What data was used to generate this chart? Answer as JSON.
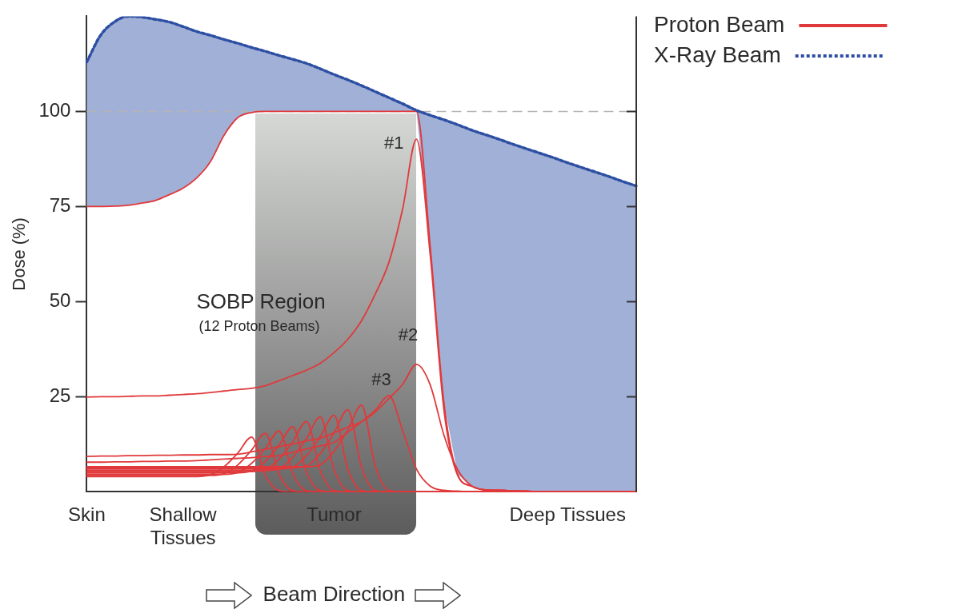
{
  "chart_data": {
    "type": "line",
    "ylabel": "Dose (%)",
    "xlabel": "Beam Direction",
    "categories": [
      "Skin",
      null,
      null,
      null,
      null,
      null,
      null,
      "Shallow Tissues",
      null,
      null,
      null,
      null,
      null,
      null,
      null,
      null,
      null,
      null,
      "Tumor",
      null,
      null,
      null,
      null,
      null,
      null,
      null,
      null,
      null,
      null,
      null,
      null,
      null,
      null,
      null,
      null,
      "Deep Tissues",
      null,
      null,
      null,
      null,
      null
    ],
    "ylim": [
      0,
      125
    ],
    "yticks": [
      25,
      50,
      75,
      100
    ],
    "legend": "top right",
    "ref_lines": [
      {
        "axis": "y",
        "value": 100,
        "color": "#b4b4b4",
        "line_style": "dashed"
      }
    ],
    "annotations": [
      "SOBP Region",
      "(12 Proton Beams)",
      "#1",
      "#2",
      "#3"
    ],
    "series": [
      {
        "name": "Proton Beam",
        "color": "#e0393b",
        "line_style": "solid",
        "values": [
          75,
          75,
          75.1,
          75.3,
          75.9,
          76.6,
          78.1,
          79.8,
          82.5,
          86.8,
          93.8,
          98.4,
          99.7,
          100,
          100,
          100,
          100,
          100,
          100,
          100,
          100,
          100,
          100,
          100,
          100,
          64.5,
          23.4,
          4.6,
          1.5,
          0.5,
          0.4,
          0.3,
          0.2,
          0,
          0,
          0,
          0,
          0,
          0,
          0,
          0
        ]
      },
      {
        "name": "X-Ray Beam",
        "type": "area",
        "color": "#2d4fa3",
        "line_style": "dotted",
        "values": [
          113,
          120,
          123.5,
          125,
          124.8,
          124.2,
          123.5,
          122.3,
          121,
          120,
          118.9,
          117.9,
          116.8,
          115.8,
          114.7,
          113.7,
          112.6,
          111.2,
          109.7,
          108.3,
          106.8,
          105.2,
          103.6,
          102,
          100.3,
          99,
          97.8,
          96.5,
          95.1,
          93.9,
          92.7,
          91.4,
          90.2,
          89,
          87.8,
          86.5,
          85.3,
          84.1,
          82.9,
          81.6,
          80.4
        ]
      },
      {
        "color": "#e0393b",
        "values": [
          24.9,
          25,
          25,
          25.1,
          25.2,
          25.2,
          25.4,
          25.6,
          25.8,
          26.1,
          26.5,
          26.9,
          27.2,
          27.9,
          29.2,
          30.6,
          32,
          33.8,
          36.6,
          40.1,
          45,
          52,
          60.4,
          74.5,
          92.7,
          62.3,
          21.5,
          4.3,
          1.5,
          0.5,
          0.4,
          0.3,
          0.2,
          0,
          0,
          0,
          0,
          0,
          0,
          0,
          0
        ]
      },
      {
        "color": "#e0393b",
        "values": [
          9.3,
          9.4,
          9.4,
          9.5,
          9.5,
          9.6,
          9.6,
          9.7,
          9.7,
          9.8,
          9.8,
          9.9,
          10.5,
          11.2,
          11.9,
          12.6,
          13.4,
          14.1,
          15.5,
          17,
          18.4,
          21,
          24.6,
          28.3,
          33.5,
          28.1,
          14.9,
          5.8,
          1.6,
          0.5,
          0.4,
          0.3,
          0.2,
          0,
          0,
          0,
          0,
          0,
          0,
          0,
          0
        ]
      },
      {
        "color": "#e0393b",
        "values": [
          7.8,
          7.8,
          7.9,
          7.9,
          8,
          8,
          8.1,
          8.1,
          8.2,
          8.4,
          8.6,
          8.8,
          9,
          9.3,
          9.5,
          10.4,
          11.3,
          12.1,
          13,
          15.7,
          18.4,
          21.5,
          25.3,
          16,
          6,
          1.5,
          0.4,
          0.2,
          0,
          0,
          0,
          0,
          0,
          0,
          0,
          0,
          0,
          0,
          0,
          0,
          0
        ]
      },
      {
        "color": "#e0393b",
        "values": [
          4,
          4,
          4,
          4,
          4,
          4,
          4,
          4,
          4,
          4.5,
          6.6,
          10.2,
          14.4,
          4.3,
          0.3,
          0,
          0,
          0,
          0,
          0,
          0,
          0,
          0,
          0,
          0,
          0,
          0,
          0,
          0,
          0,
          0,
          0,
          0,
          0,
          0,
          0,
          0,
          0,
          0,
          0,
          0
        ]
      },
      {
        "color": "#e0393b",
        "values": [
          4.3,
          4.3,
          4.3,
          4.3,
          4.3,
          4.3,
          4.3,
          4.3,
          4.3,
          4.3,
          4.8,
          7.1,
          11,
          15.4,
          4.6,
          0.3,
          0,
          0,
          0,
          0,
          0,
          0,
          0,
          0,
          0,
          0,
          0,
          0,
          0,
          0,
          0,
          0,
          0,
          0,
          0,
          0,
          0,
          0,
          0,
          0,
          0
        ]
      },
      {
        "color": "#e0393b",
        "values": [
          4.6,
          4.6,
          4.6,
          4.6,
          4.6,
          4.6,
          4.6,
          4.6,
          4.6,
          4.6,
          4.6,
          5.1,
          7.5,
          11.4,
          16,
          4.8,
          0.3,
          0,
          0,
          0,
          0,
          0,
          0,
          0,
          0,
          0,
          0,
          0,
          0,
          0,
          0,
          0,
          0,
          0,
          0,
          0,
          0,
          0,
          0,
          0,
          0
        ]
      },
      {
        "color": "#e0393b",
        "values": [
          5,
          5,
          5,
          5,
          5,
          5,
          5,
          5,
          5,
          5,
          5,
          5,
          5.5,
          8,
          12.3,
          17.1,
          5.1,
          0.3,
          0,
          0,
          0,
          0,
          0,
          0,
          0,
          0,
          0,
          0,
          0,
          0,
          0,
          0,
          0,
          0,
          0,
          0,
          0,
          0,
          0,
          0,
          0
        ]
      },
      {
        "color": "#e0393b",
        "values": [
          5.3,
          5.3,
          5.3,
          5.3,
          5.3,
          5.3,
          5.3,
          5.3,
          5.3,
          5.3,
          5.3,
          5.3,
          5.3,
          5.8,
          8.6,
          13.2,
          18.5,
          5.6,
          0.3,
          0,
          0,
          0,
          0,
          0,
          0,
          0,
          0,
          0,
          0,
          0,
          0,
          0,
          0,
          0,
          0,
          0,
          0,
          0,
          0,
          0,
          0
        ]
      },
      {
        "color": "#e0393b",
        "values": [
          5.6,
          5.6,
          5.6,
          5.6,
          5.6,
          5.6,
          5.6,
          5.6,
          5.6,
          5.6,
          5.6,
          5.6,
          5.6,
          5.6,
          6.1,
          9.1,
          14.1,
          19.7,
          5.9,
          0.3,
          0,
          0,
          0,
          0,
          0,
          0,
          0,
          0,
          0,
          0,
          0,
          0,
          0,
          0,
          0,
          0,
          0,
          0,
          0,
          0,
          0
        ]
      },
      {
        "color": "#e0393b",
        "values": [
          6,
          6,
          6,
          6,
          6,
          6,
          6,
          6,
          6,
          6,
          6,
          6,
          6,
          6,
          6,
          6.5,
          9.5,
          14.5,
          20.1,
          6,
          0.3,
          0,
          0,
          0,
          0,
          0,
          0,
          0,
          0,
          0,
          0,
          0,
          0,
          0,
          0,
          0,
          0,
          0,
          0,
          0,
          0
        ]
      },
      {
        "color": "#e0393b",
        "values": [
          6.3,
          6.3,
          6.3,
          6.3,
          6.3,
          6.3,
          6.3,
          6.3,
          6.3,
          6.3,
          6.3,
          6.3,
          6.3,
          6.3,
          6.3,
          6.3,
          6.8,
          10.1,
          15.5,
          21.6,
          6.5,
          0.3,
          0,
          0,
          0,
          0,
          0,
          0,
          0,
          0,
          0,
          0,
          0,
          0,
          0,
          0,
          0,
          0,
          0,
          0,
          0
        ]
      },
      {
        "color": "#e0393b",
        "values": [
          6.6,
          6.6,
          6.6,
          6.6,
          6.6,
          6.6,
          6.6,
          6.6,
          6.6,
          6.6,
          6.6,
          6.6,
          6.6,
          6.6,
          6.6,
          6.6,
          6.6,
          7.1,
          10.7,
          16.3,
          22.8,
          6.8,
          0.3,
          0,
          0,
          0,
          0,
          0,
          0,
          0,
          0,
          0,
          0,
          0,
          0,
          0,
          0,
          0,
          0,
          0,
          0
        ]
      }
    ]
  }
}
